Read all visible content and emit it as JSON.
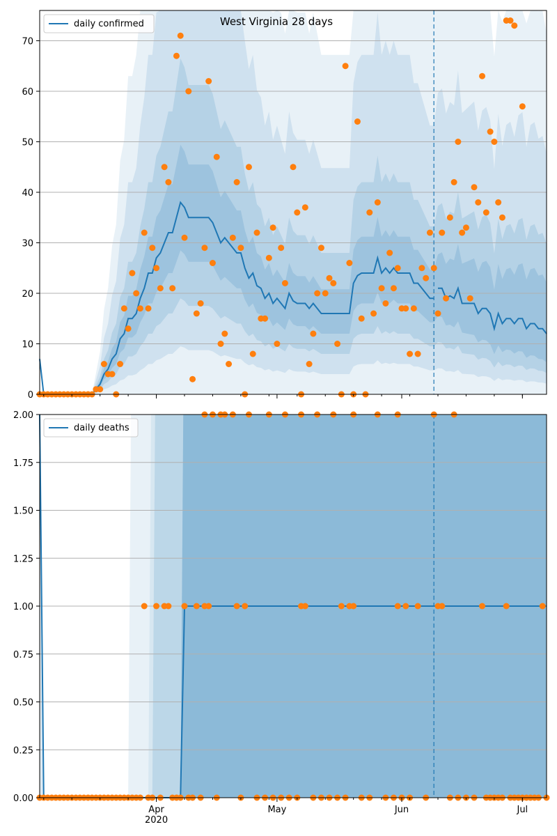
{
  "chart_data": [
    {
      "type": "line",
      "title": "West Virginia 28 days",
      "xlabel": "",
      "ylabel": "",
      "ylim": [
        0,
        76
      ],
      "yticks": [
        0,
        10,
        20,
        30,
        40,
        50,
        60,
        70
      ],
      "ytick_labels": [
        "0",
        "10",
        "20",
        "30",
        "40",
        "50",
        "60",
        "70"
      ],
      "legend_position": "top-left",
      "grid": "horizontal",
      "vline_day": 98,
      "series": [
        {
          "name": "daily confirmed",
          "kind": "fitted-line",
          "color": "#1f77b4",
          "points": [
            [
              0,
              7
            ],
            [
              1,
              0
            ],
            [
              13,
              0
            ],
            [
              14,
              1
            ],
            [
              15,
              2
            ],
            [
              16,
              4
            ],
            [
              17,
              5
            ],
            [
              18,
              7
            ],
            [
              19,
              8
            ],
            [
              20,
              11
            ],
            [
              21,
              12
            ],
            [
              22,
              15
            ],
            [
              23,
              15
            ],
            [
              24,
              16
            ],
            [
              25,
              19
            ],
            [
              26,
              21
            ],
            [
              27,
              24
            ],
            [
              28,
              24
            ],
            [
              29,
              27
            ],
            [
              30,
              28
            ],
            [
              31,
              30
            ],
            [
              32,
              32
            ],
            [
              33,
              32
            ],
            [
              34,
              35
            ],
            [
              35,
              38
            ],
            [
              36,
              37
            ],
            [
              37,
              35
            ],
            [
              42,
              35
            ],
            [
              43,
              34
            ],
            [
              44,
              32
            ],
            [
              45,
              30
            ],
            [
              46,
              31
            ],
            [
              47,
              30
            ],
            [
              48,
              29
            ],
            [
              49,
              28
            ],
            [
              50,
              28
            ],
            [
              51,
              25
            ],
            [
              52,
              23
            ],
            [
              53,
              24
            ],
            [
              54,
              21.5
            ],
            [
              55,
              21
            ],
            [
              56,
              19
            ],
            [
              57,
              20
            ],
            [
              58,
              18
            ],
            [
              59,
              19
            ],
            [
              60,
              18
            ],
            [
              61,
              17
            ],
            [
              62,
              20
            ],
            [
              63,
              18.5
            ],
            [
              64,
              18
            ],
            [
              66,
              18
            ],
            [
              67,
              17
            ],
            [
              68,
              18
            ],
            [
              69,
              17
            ],
            [
              70,
              16
            ],
            [
              77,
              16
            ],
            [
              78,
              22
            ],
            [
              79,
              23.5
            ],
            [
              80,
              24
            ],
            [
              83,
              24
            ],
            [
              84,
              27
            ],
            [
              85,
              24
            ],
            [
              86,
              25
            ],
            [
              87,
              24
            ],
            [
              88,
              25
            ],
            [
              89,
              24
            ],
            [
              92,
              24
            ],
            [
              93,
              22
            ],
            [
              94,
              22
            ],
            [
              95,
              21
            ],
            [
              97,
              19
            ],
            [
              98,
              19
            ]
          ]
        },
        {
          "name": "",
          "kind": "forecast-line",
          "color": "#1f77b4",
          "points": [
            [
              99,
              21
            ],
            [
              100,
              21
            ],
            [
              101,
              19
            ],
            [
              102,
              19.5
            ],
            [
              103,
              19
            ],
            [
              104,
              21
            ],
            [
              105,
              18
            ],
            [
              108,
              18
            ],
            [
              109,
              16
            ],
            [
              110,
              17
            ],
            [
              111,
              17
            ],
            [
              112,
              16
            ],
            [
              113,
              13
            ],
            [
              114,
              16
            ],
            [
              115,
              14
            ],
            [
              116,
              15
            ],
            [
              117,
              15
            ],
            [
              118,
              14
            ],
            [
              119,
              15
            ],
            [
              120,
              15
            ],
            [
              121,
              13
            ],
            [
              122,
              14
            ],
            [
              123,
              14
            ],
            [
              124,
              13
            ],
            [
              125,
              13
            ],
            [
              126,
              12
            ]
          ]
        },
        {
          "name": "",
          "kind": "observed-points",
          "color": "#ff7f0e",
          "points": [
            [
              0,
              0
            ],
            [
              1,
              0
            ],
            [
              2,
              0
            ],
            [
              3,
              0
            ],
            [
              4,
              0
            ],
            [
              5,
              0
            ],
            [
              6,
              0
            ],
            [
              7,
              0
            ],
            [
              8,
              0
            ],
            [
              9,
              0
            ],
            [
              10,
              0
            ],
            [
              11,
              0
            ],
            [
              12,
              0
            ],
            [
              13,
              0
            ],
            [
              14,
              1
            ],
            [
              15,
              1
            ],
            [
              16,
              6
            ],
            [
              17,
              4
            ],
            [
              18,
              4
            ],
            [
              19,
              0
            ],
            [
              20,
              6
            ],
            [
              21,
              17
            ],
            [
              22,
              13
            ],
            [
              23,
              24
            ],
            [
              24,
              20
            ],
            [
              25,
              17
            ],
            [
              26,
              32
            ],
            [
              27,
              17
            ],
            [
              28,
              29
            ],
            [
              29,
              25
            ],
            [
              30,
              21
            ],
            [
              31,
              45
            ],
            [
              32,
              42
            ],
            [
              33,
              21
            ],
            [
              34,
              67
            ],
            [
              35,
              71
            ],
            [
              36,
              31
            ],
            [
              37,
              60
            ],
            [
              38,
              3
            ],
            [
              39,
              16
            ],
            [
              40,
              18
            ],
            [
              41,
              29
            ],
            [
              42,
              62
            ],
            [
              43,
              26
            ],
            [
              44,
              47
            ],
            [
              45,
              10
            ],
            [
              46,
              12
            ],
            [
              47,
              6
            ],
            [
              48,
              31
            ],
            [
              49,
              42
            ],
            [
              50,
              29
            ],
            [
              51,
              0
            ],
            [
              52,
              45
            ],
            [
              53,
              8
            ],
            [
              54,
              32
            ],
            [
              55,
              15
            ],
            [
              56,
              15
            ],
            [
              57,
              27
            ],
            [
              58,
              33
            ],
            [
              59,
              10
            ],
            [
              60,
              29
            ],
            [
              61,
              22
            ],
            [
              63,
              45
            ],
            [
              64,
              36
            ],
            [
              65,
              0
            ],
            [
              66,
              37
            ],
            [
              67,
              6
            ],
            [
              68,
              12
            ],
            [
              69,
              20
            ],
            [
              70,
              29
            ],
            [
              71,
              20
            ],
            [
              72,
              23
            ],
            [
              73,
              22
            ],
            [
              74,
              10
            ],
            [
              75,
              0
            ],
            [
              76,
              65
            ],
            [
              77,
              26
            ],
            [
              78,
              0
            ],
            [
              79,
              54
            ],
            [
              80,
              15
            ],
            [
              81,
              0
            ],
            [
              82,
              36
            ],
            [
              83,
              16
            ],
            [
              84,
              38
            ],
            [
              85,
              21
            ],
            [
              86,
              18
            ],
            [
              87,
              28
            ],
            [
              88,
              21
            ],
            [
              89,
              25
            ],
            [
              90,
              17
            ],
            [
              91,
              17
            ],
            [
              92,
              8
            ],
            [
              93,
              17
            ],
            [
              94,
              8
            ],
            [
              95,
              25
            ],
            [
              96,
              23
            ],
            [
              97,
              32
            ],
            [
              98,
              25
            ],
            [
              99,
              16
            ],
            [
              100,
              32
            ],
            [
              101,
              19
            ],
            [
              102,
              35
            ],
            [
              103,
              42
            ],
            [
              104,
              50
            ],
            [
              105,
              32
            ],
            [
              106,
              33
            ],
            [
              107,
              19
            ],
            [
              108,
              41
            ],
            [
              109,
              38
            ],
            [
              110,
              63
            ],
            [
              111,
              36
            ],
            [
              112,
              52
            ],
            [
              113,
              50
            ],
            [
              114,
              38
            ],
            [
              115,
              35
            ],
            [
              116,
              74
            ],
            [
              117,
              74
            ],
            [
              118,
              73
            ],
            [
              120,
              57
            ]
          ]
        }
      ]
    },
    {
      "type": "line",
      "title": "",
      "xlabel": "",
      "ylabel": "",
      "ylim": [
        0,
        2
      ],
      "yticks": [
        0,
        0.25,
        0.5,
        0.75,
        1,
        1.25,
        1.5,
        1.75,
        2
      ],
      "ytick_labels": [
        "0.00",
        "0.25",
        "0.50",
        "0.75",
        "1.00",
        "1.25",
        "1.50",
        "1.75",
        "2.00"
      ],
      "legend_position": "top-left",
      "grid": "horizontal",
      "vline_day": 98,
      "xtick_labels": [
        "Apr\n2020",
        "May",
        "Jun",
        "Jul"
      ],
      "series": [
        {
          "name": "daily deaths",
          "kind": "fitted-line",
          "color": "#1f77b4",
          "points": [
            [
              0,
              2
            ],
            [
              1,
              0
            ],
            [
              35,
              0
            ],
            [
              36,
              1
            ],
            [
              126,
              1
            ]
          ]
        },
        {
          "name": "",
          "kind": "observed-points",
          "color": "#ff7f0e",
          "ones": [
            26,
            29,
            31,
            32,
            36,
            39,
            41,
            42,
            49,
            51,
            65,
            66,
            75,
            77,
            78,
            89,
            91,
            94,
            99,
            100,
            110,
            116,
            125
          ],
          "twos": [
            41,
            43,
            45,
            46,
            48,
            52,
            57,
            61,
            65,
            69,
            73,
            78,
            84,
            89,
            98,
            103
          ]
        }
      ]
    }
  ]
}
